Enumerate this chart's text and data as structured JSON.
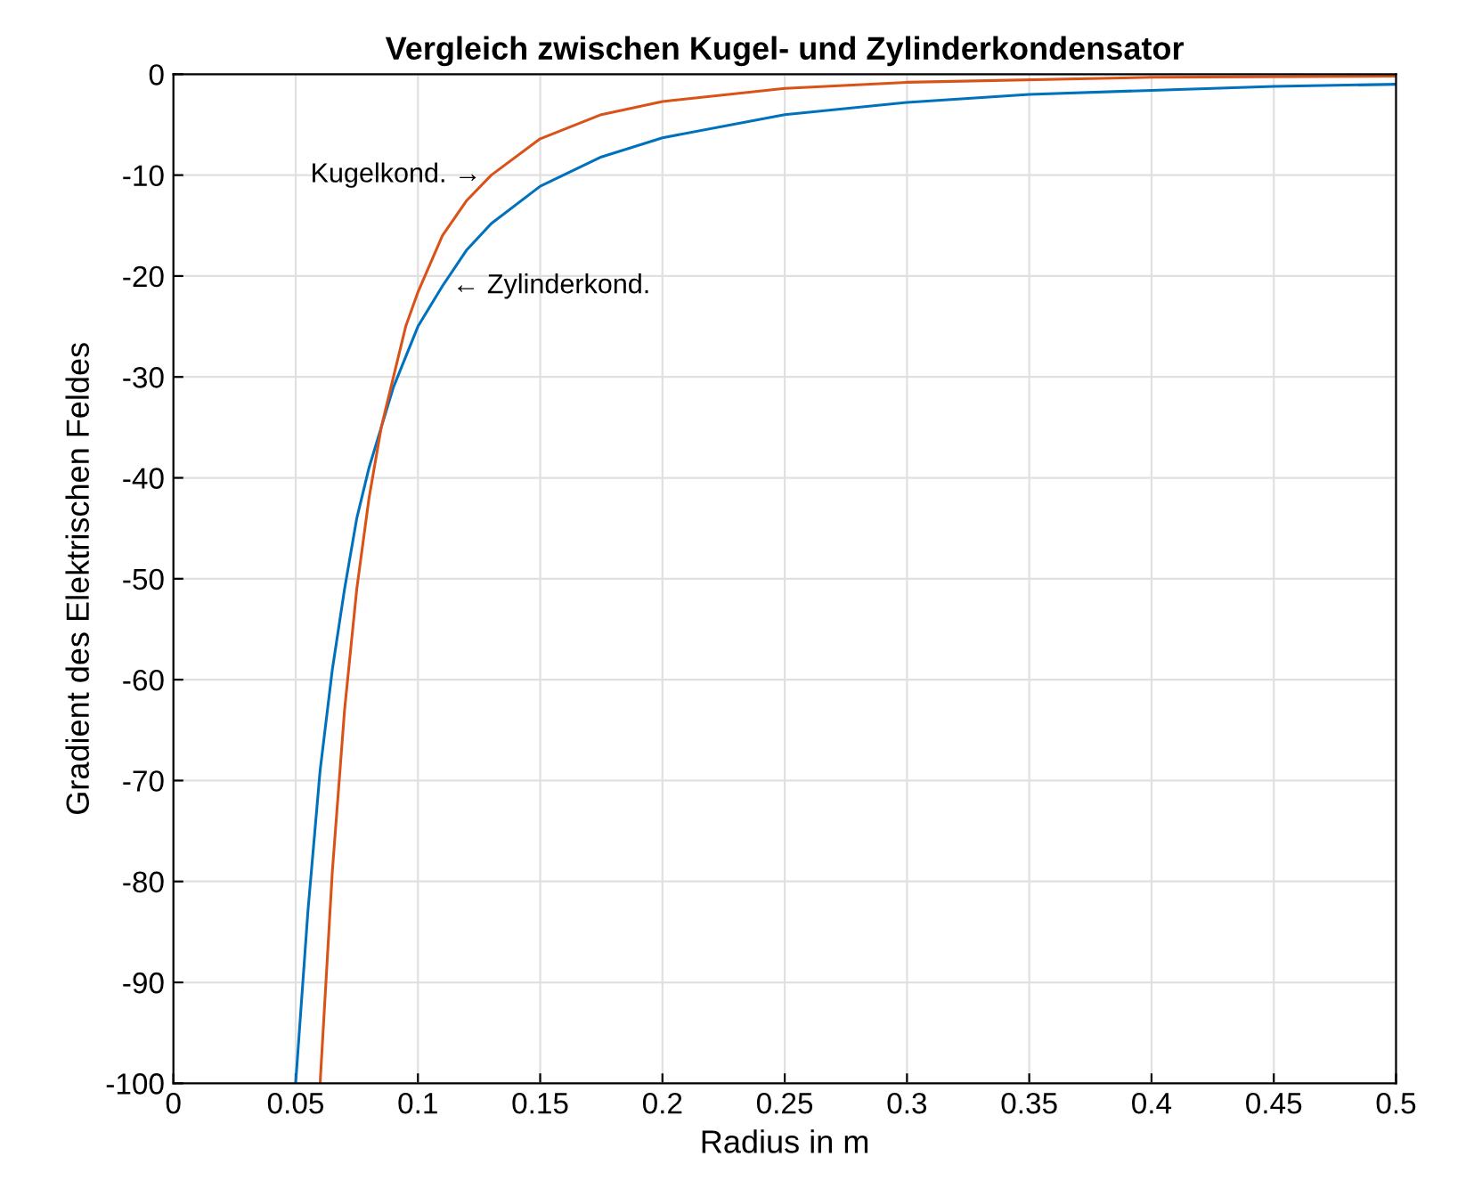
{
  "chart_data": {
    "type": "line",
    "title": "Vergleich zwischen Kugel- und Zylinderkondensator",
    "xlabel": "Radius in m",
    "ylabel": "Gradient des Elektrischen Feldes",
    "series": [
      {
        "color": "#0072bd",
        "x": [
          0.05,
          0.055,
          0.06,
          0.065,
          0.07,
          0.075,
          0.08,
          0.085,
          0.09,
          0.095,
          0.1,
          0.11,
          0.12,
          0.13,
          0.15,
          0.175,
          0.2,
          0.25,
          0.3,
          0.35,
          0.4,
          0.45,
          0.5
        ],
        "values": [
          -100,
          -83,
          -69,
          -59,
          -51,
          -44,
          -39,
          -35,
          -31,
          -28,
          -25,
          -21,
          -17.4,
          -14.8,
          -11.1,
          -8.2,
          -6.3,
          -4,
          -2.8,
          -2,
          -1.6,
          -1.2,
          -1
        ]
      },
      {
        "color": "#d95319",
        "x": [
          0.06,
          0.065,
          0.07,
          0.075,
          0.08,
          0.085,
          0.09,
          0.095,
          0.1,
          0.11,
          0.12,
          0.13,
          0.15,
          0.175,
          0.2,
          0.25,
          0.3,
          0.4,
          0.5
        ],
        "values": [
          -100,
          -79,
          -63,
          -51,
          -42,
          -35,
          -30,
          -25,
          -21.6,
          -16,
          -12.5,
          -10,
          -6.4,
          -4,
          -2.7,
          -1.4,
          -0.8,
          -0.3,
          -0.2
        ]
      }
    ],
    "annotations": [
      {
        "text": "Kugelkond. →",
        "x": 0.13,
        "y": -10
      },
      {
        "text": "← Zylinderkond.",
        "x": 0.11,
        "y": -21
      }
    ],
    "xlim": [
      0,
      0.5
    ],
    "xticks": [
      0,
      0.05,
      0.1,
      0.15,
      0.2,
      0.25,
      0.3,
      0.35,
      0.4,
      0.45,
      0.5
    ],
    "ylim": [
      -100,
      0
    ],
    "yticks": [
      -100,
      -90,
      -80,
      -70,
      -60,
      -50,
      -40,
      -30,
      -20,
      -10,
      0
    ],
    "grid": true
  }
}
